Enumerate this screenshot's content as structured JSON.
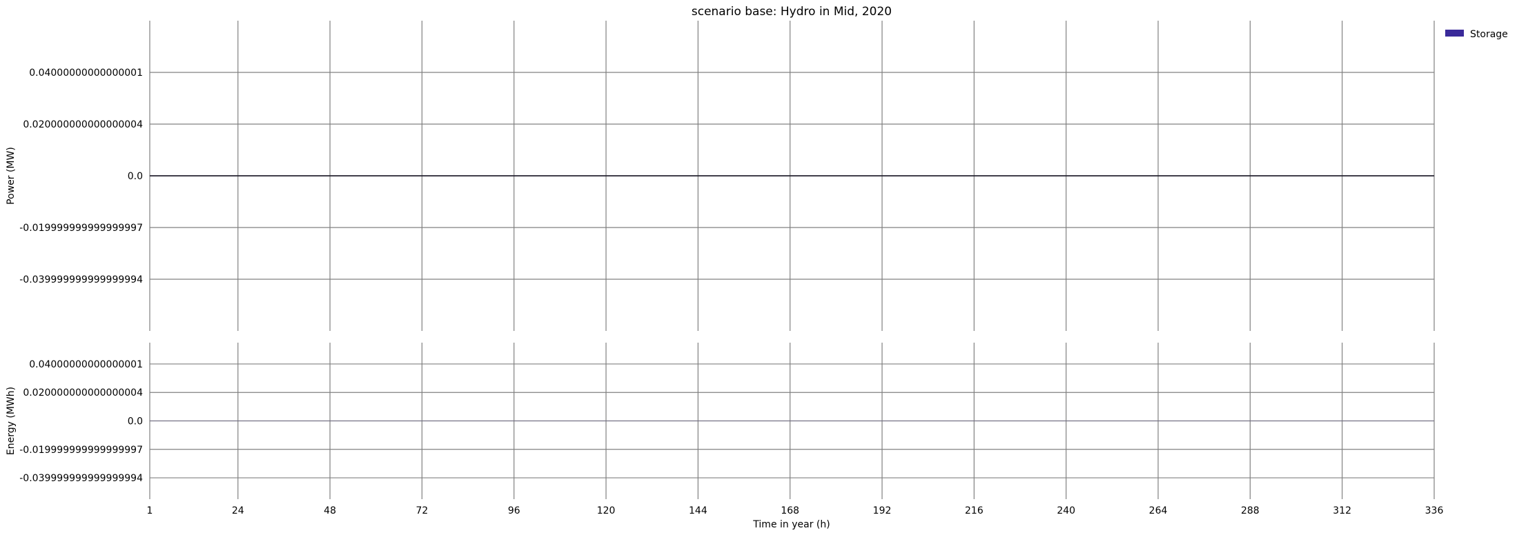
{
  "chart_data": {
    "type": "area",
    "title": "scenario base: Hydro in Mid, 2020",
    "xlabel": "Time in year (h)",
    "x_ticks": [
      "1",
      "24",
      "48",
      "72",
      "96",
      "120",
      "144",
      "168",
      "192",
      "216",
      "240",
      "264",
      "288",
      "312",
      "336"
    ],
    "x_tick_values": [
      1,
      24,
      48,
      72,
      96,
      120,
      144,
      168,
      192,
      216,
      240,
      264,
      288,
      312,
      336
    ],
    "xlim": [
      1,
      336
    ],
    "grid": true,
    "legend": {
      "placement": "top-right",
      "entries": [
        {
          "name": "Storage",
          "color": "#3a2a9a"
        }
      ]
    },
    "panels": [
      {
        "ylabel": "Power (MW)",
        "ylim": [
          -0.06,
          0.06
        ],
        "y_ticks": [
          "0.04000000000000001",
          "0.020000000000000004",
          "0.0",
          "-0.019999999999999997",
          "-0.039999999999999994"
        ],
        "y_tick_values": [
          0.04,
          0.02,
          0.0,
          -0.02,
          -0.04
        ],
        "series": [
          {
            "name": "Storage",
            "values": [
              0
            ]
          }
        ]
      },
      {
        "ylabel": "Energy (MWh)",
        "ylim": [
          -0.055,
          0.055
        ],
        "y_ticks": [
          "0.04000000000000001",
          "0.020000000000000004",
          "0.0",
          "-0.019999999999999997",
          "-0.039999999999999994"
        ],
        "y_tick_values": [
          0.04,
          0.02,
          0.0,
          -0.02,
          -0.04
        ],
        "series": [
          {
            "name": "Storage",
            "values": [
              0
            ]
          }
        ]
      }
    ]
  }
}
